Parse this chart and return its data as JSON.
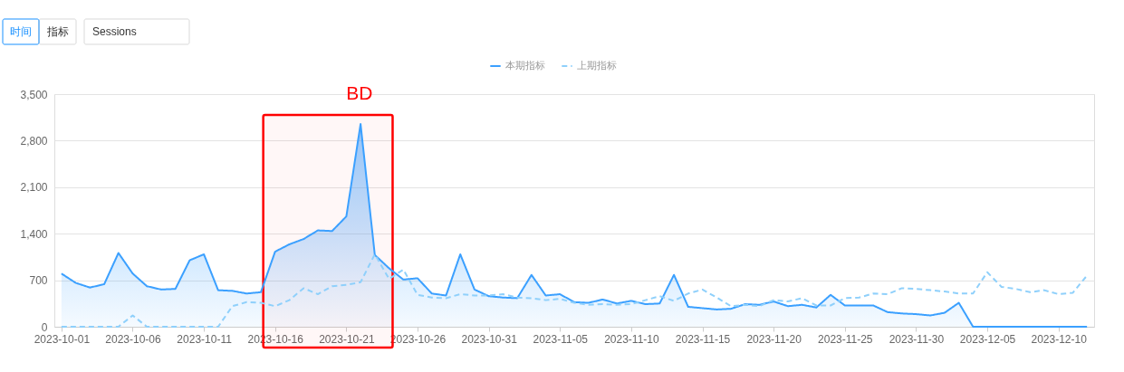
{
  "chart_data": {
    "type": "line",
    "x": [
      "2023-10-01",
      "2023-10-02",
      "2023-10-03",
      "2023-10-04",
      "2023-10-05",
      "2023-10-06",
      "2023-10-07",
      "2023-10-08",
      "2023-10-09",
      "2023-10-10",
      "2023-10-11",
      "2023-10-12",
      "2023-10-13",
      "2023-10-14",
      "2023-10-15",
      "2023-10-16",
      "2023-10-17",
      "2023-10-18",
      "2023-10-19",
      "2023-10-20",
      "2023-10-21",
      "2023-10-22",
      "2023-10-23",
      "2023-10-24",
      "2023-10-25",
      "2023-10-26",
      "2023-10-27",
      "2023-10-28",
      "2023-10-29",
      "2023-10-30",
      "2023-10-31",
      "2023-11-01",
      "2023-11-02",
      "2023-11-03",
      "2023-11-04",
      "2023-11-05",
      "2023-11-06",
      "2023-11-07",
      "2023-11-08",
      "2023-11-09",
      "2023-11-10",
      "2023-11-11",
      "2023-11-12",
      "2023-11-13",
      "2023-11-14",
      "2023-11-15",
      "2023-11-16",
      "2023-11-17",
      "2023-11-18",
      "2023-11-19",
      "2023-11-20",
      "2023-11-21",
      "2023-11-22",
      "2023-11-23",
      "2023-11-24",
      "2023-11-25",
      "2023-11-26",
      "2023-11-27",
      "2023-11-28",
      "2023-11-29",
      "2023-11-30",
      "2023-12-01",
      "2023-12-02",
      "2023-12-03",
      "2023-12-04",
      "2023-12-05",
      "2023-12-06",
      "2023-12-07",
      "2023-12-08",
      "2023-12-09",
      "2023-12-10",
      "2023-12-11",
      "2023-12-12"
    ],
    "series": [
      {
        "name": "本期指标",
        "type": "area",
        "color": "#3ba0ff",
        "line_style": "solid",
        "values": [
          800,
          660,
          590,
          640,
          1110,
          800,
          610,
          560,
          570,
          1000,
          1090,
          550,
          540,
          500,
          520,
          1130,
          1240,
          1320,
          1450,
          1440,
          1660,
          3050,
          1080,
          880,
          710,
          730,
          500,
          470,
          1090,
          560,
          460,
          440,
          430,
          780,
          470,
          490,
          370,
          360,
          410,
          350,
          390,
          340,
          350,
          780,
          300,
          280,
          260,
          270,
          340,
          330,
          380,
          310,
          330,
          290,
          480,
          320,
          320,
          320,
          220,
          200,
          190,
          170,
          210,
          360,
          0,
          0,
          0,
          0,
          0,
          0,
          0,
          0,
          0
        ]
      },
      {
        "name": "上期指标",
        "color": "#8fd0fb",
        "line_style": "dashed",
        "values": [
          0,
          0,
          0,
          0,
          0,
          170,
          0,
          0,
          0,
          0,
          0,
          0,
          310,
          370,
          360,
          310,
          400,
          580,
          490,
          610,
          630,
          670,
          1090,
          720,
          860,
          480,
          440,
          430,
          490,
          470,
          470,
          490,
          440,
          430,
          400,
          420,
          360,
          330,
          340,
          330,
          340,
          400,
          460,
          390,
          500,
          560,
          440,
          310,
          330,
          310,
          400,
          380,
          430,
          320,
          320,
          430,
          440,
          500,
          490,
          580,
          570,
          550,
          530,
          500,
          500,
          820,
          600,
          570,
          520,
          550,
          490,
          510,
          770
        ]
      }
    ],
    "xlim": [
      "2023-09-30T12:00",
      "2023-12-12T12:00"
    ],
    "xticks": [
      "2023-10-01",
      "2023-10-06",
      "2023-10-11",
      "2023-10-16",
      "2023-10-21",
      "2023-10-26",
      "2023-10-31",
      "2023-11-05",
      "2023-11-10",
      "2023-11-15",
      "2023-11-20",
      "2023-11-25",
      "2023-11-30",
      "2023-12-05",
      "2023-12-10"
    ],
    "ylim": [
      0,
      3500
    ],
    "yticks": [
      0,
      700,
      {
        "value": 1400,
        "label": "1,400"
      },
      {
        "value": 2100,
        "label": "2,100"
      },
      {
        "value": 2800,
        "label": "2,800"
      },
      {
        "value": 3500,
        "label": "3,500"
      }
    ],
    "grid": "y",
    "legend": "top",
    "bands": [
      {
        "axis": "x",
        "from": "2023-10-15T04:00",
        "to": "2023-10-24T06:00",
        "label": "BD",
        "color": "#ff0000"
      }
    ],
    "annotations": [
      "时间",
      "指标",
      "Sessions"
    ]
  }
}
